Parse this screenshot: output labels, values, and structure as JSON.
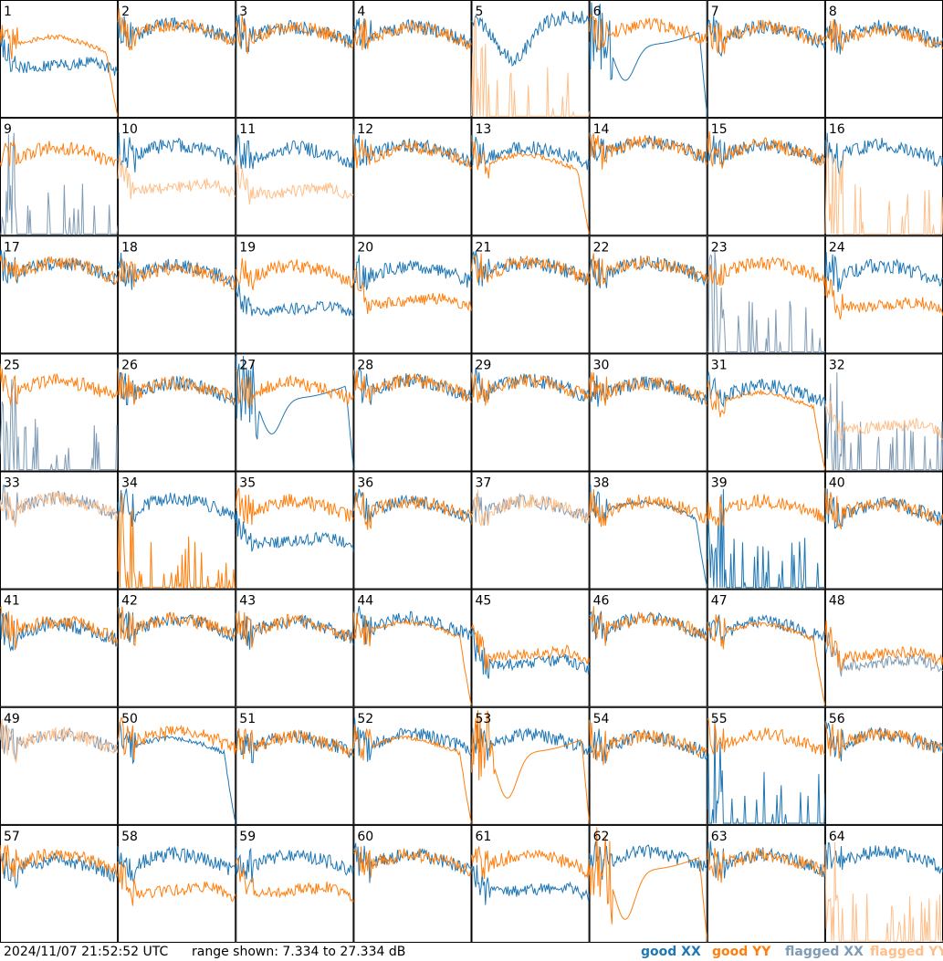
{
  "title": "",
  "footer": {
    "timestamp": "2024/11/07 21:52:52 UTC",
    "range": "range shown: 7.334 to 27.334 dB"
  },
  "colors": {
    "good_xx": "#1f77b4",
    "good_yy": "#ff7f0e",
    "flagged_xx": "#7f9bb5",
    "flagged_yy": "#ffbf8a",
    "grid": "#000000"
  },
  "chart_data": {
    "type": "line",
    "layout": "8x8 small multiples",
    "ylim": [
      7.334,
      27.334
    ],
    "y_unit": "dB",
    "legend": [
      {
        "name": "good XX",
        "color": "#1f77b4"
      },
      {
        "name": "good YY",
        "color": "#ff7f0e"
      },
      {
        "name": "flagged XX",
        "color": "#7f9bb5"
      },
      {
        "name": "flagged YY",
        "color": "#ffbf8a"
      }
    ],
    "legend_position": "bottom-right",
    "panels": [
      {
        "id": "1",
        "xx": {
          "shape": "mid",
          "level": 0.45,
          "flag": false
        },
        "yy": {
          "shape": "dropright",
          "level": 0.55,
          "flag": false
        }
      },
      {
        "id": "2",
        "xx": {
          "shape": "standard",
          "level": 0.25,
          "flag": false
        },
        "yy": {
          "shape": "standard",
          "level": 0.25,
          "flag": false
        }
      },
      {
        "id": "3",
        "xx": {
          "shape": "standard",
          "level": 0.3,
          "flag": false
        },
        "yy": {
          "shape": "standard",
          "level": 0.3,
          "flag": false
        }
      },
      {
        "id": "4",
        "xx": {
          "shape": "standard",
          "level": 0.3,
          "flag": false
        },
        "yy": {
          "shape": "standard",
          "level": 0.3,
          "flag": false
        }
      },
      {
        "id": "5",
        "xx": {
          "shape": "dipwide",
          "level": 0.2,
          "flag": false
        },
        "yy": {
          "shape": "spiky_low",
          "level": 0.0,
          "flag": true
        }
      },
      {
        "id": "6",
        "xx": {
          "shape": "deep",
          "level": 0.55,
          "flag": false
        },
        "yy": {
          "shape": "standard",
          "level": 0.25,
          "flag": false
        }
      },
      {
        "id": "7",
        "xx": {
          "shape": "standard",
          "level": 0.3,
          "flag": false
        },
        "yy": {
          "shape": "standard",
          "level": 0.3,
          "flag": false
        }
      },
      {
        "id": "8",
        "xx": {
          "shape": "standard",
          "level": 0.3,
          "flag": false
        },
        "yy": {
          "shape": "standard",
          "level": 0.35,
          "flag": false
        }
      },
      {
        "id": "9",
        "xx": {
          "shape": "spiky_low",
          "level": 0.0,
          "flag": true
        },
        "yy": {
          "shape": "standard",
          "level": 0.35,
          "flag": false
        }
      },
      {
        "id": "10",
        "xx": {
          "shape": "standard",
          "level": 0.3,
          "flag": false
        },
        "yy": {
          "shape": "mid",
          "level": 0.5,
          "flag": true
        }
      },
      {
        "id": "11",
        "xx": {
          "shape": "standard",
          "level": 0.35,
          "flag": false
        },
        "yy": {
          "shape": "mid",
          "level": 0.55,
          "flag": true
        }
      },
      {
        "id": "12",
        "xx": {
          "shape": "standard",
          "level": 0.3,
          "flag": false
        },
        "yy": {
          "shape": "standard",
          "level": 0.35,
          "flag": false
        }
      },
      {
        "id": "13",
        "xx": {
          "shape": "standard",
          "level": 0.35,
          "flag": false
        },
        "yy": {
          "shape": "dropright",
          "level": 0.55,
          "flag": false
        }
      },
      {
        "id": "14",
        "xx": {
          "shape": "standard",
          "level": 0.25,
          "flag": false
        },
        "yy": {
          "shape": "standard",
          "level": 0.25,
          "flag": false
        }
      },
      {
        "id": "15",
        "xx": {
          "shape": "standard",
          "level": 0.3,
          "flag": false
        },
        "yy": {
          "shape": "standard",
          "level": 0.3,
          "flag": false
        }
      },
      {
        "id": "16",
        "xx": {
          "shape": "standard",
          "level": 0.3,
          "flag": false
        },
        "yy": {
          "shape": "spiky_low",
          "level": 0.0,
          "flag": true
        }
      },
      {
        "id": "17",
        "xx": {
          "shape": "standard",
          "level": 0.3,
          "flag": false
        },
        "yy": {
          "shape": "standard",
          "level": 0.3,
          "flag": false
        }
      },
      {
        "id": "18",
        "xx": {
          "shape": "standard",
          "level": 0.35,
          "flag": false
        },
        "yy": {
          "shape": "standard",
          "level": 0.4,
          "flag": false
        }
      },
      {
        "id": "19",
        "xx": {
          "shape": "mid",
          "level": 0.55,
          "flag": false
        },
        "yy": {
          "shape": "standard",
          "level": 0.35,
          "flag": false
        }
      },
      {
        "id": "20",
        "xx": {
          "shape": "standard",
          "level": 0.35,
          "flag": false
        },
        "yy": {
          "shape": "mid",
          "level": 0.45,
          "flag": false
        }
      },
      {
        "id": "21",
        "xx": {
          "shape": "standard",
          "level": 0.3,
          "flag": false
        },
        "yy": {
          "shape": "standard",
          "level": 0.3,
          "flag": false
        }
      },
      {
        "id": "22",
        "xx": {
          "shape": "standard",
          "level": 0.3,
          "flag": false
        },
        "yy": {
          "shape": "standard",
          "level": 0.3,
          "flag": false
        }
      },
      {
        "id": "23",
        "xx": {
          "shape": "spiky_low",
          "level": 0.0,
          "flag": true
        },
        "yy": {
          "shape": "standard",
          "level": 0.3,
          "flag": false
        }
      },
      {
        "id": "24",
        "xx": {
          "shape": "standard",
          "level": 0.35,
          "flag": false
        },
        "yy": {
          "shape": "mid",
          "level": 0.5,
          "flag": false
        }
      },
      {
        "id": "25",
        "xx": {
          "shape": "spiky_low",
          "level": 0.0,
          "flag": true
        },
        "yy": {
          "shape": "standard",
          "level": 0.3,
          "flag": false
        }
      },
      {
        "id": "26",
        "xx": {
          "shape": "standard",
          "level": 0.35,
          "flag": false
        },
        "yy": {
          "shape": "standard",
          "level": 0.35,
          "flag": false
        }
      },
      {
        "id": "27",
        "xx": {
          "shape": "deep",
          "level": 0.55,
          "flag": false
        },
        "yy": {
          "shape": "standard",
          "level": 0.35,
          "flag": false
        }
      },
      {
        "id": "28",
        "xx": {
          "shape": "standard",
          "level": 0.3,
          "flag": false
        },
        "yy": {
          "shape": "standard",
          "level": 0.3,
          "flag": false
        }
      },
      {
        "id": "29",
        "xx": {
          "shape": "standard",
          "level": 0.3,
          "flag": false
        },
        "yy": {
          "shape": "standard",
          "level": 0.3,
          "flag": false
        }
      },
      {
        "id": "30",
        "xx": {
          "shape": "standard",
          "level": 0.35,
          "flag": false
        },
        "yy": {
          "shape": "standard",
          "level": 0.35,
          "flag": false
        }
      },
      {
        "id": "31",
        "xx": {
          "shape": "standard",
          "level": 0.4,
          "flag": false
        },
        "yy": {
          "shape": "dropright",
          "level": 0.6,
          "flag": false
        }
      },
      {
        "id": "32",
        "xx": {
          "shape": "spiky_low",
          "level": 0.0,
          "flag": true
        },
        "yy": {
          "shape": "mid",
          "level": 0.55,
          "flag": true
        }
      },
      {
        "id": "33",
        "xx": {
          "shape": "standard",
          "level": 0.3,
          "flag": true
        },
        "yy": {
          "shape": "standard",
          "level": 0.3,
          "flag": true
        }
      },
      {
        "id": "34",
        "xx": {
          "shape": "standard",
          "level": 0.3,
          "flag": false
        },
        "yy": {
          "shape": "spiky_low",
          "level": 0.0,
          "flag": false
        }
      },
      {
        "id": "35",
        "xx": {
          "shape": "mid",
          "level": 0.5,
          "flag": false
        },
        "yy": {
          "shape": "standard",
          "level": 0.35,
          "flag": false
        }
      },
      {
        "id": "36",
        "xx": {
          "shape": "standard",
          "level": 0.35,
          "flag": false
        },
        "yy": {
          "shape": "standard",
          "level": 0.35,
          "flag": false
        }
      },
      {
        "id": "37",
        "xx": {
          "shape": "standard",
          "level": 0.35,
          "flag": true
        },
        "yy": {
          "shape": "standard",
          "level": 0.35,
          "flag": true
        }
      },
      {
        "id": "38",
        "xx": {
          "shape": "dropright",
          "level": 0.4,
          "flag": false
        },
        "yy": {
          "shape": "standard",
          "level": 0.35,
          "flag": false
        }
      },
      {
        "id": "39",
        "xx": {
          "shape": "spiky_low",
          "level": 0.0,
          "flag": false
        },
        "yy": {
          "shape": "standard",
          "level": 0.35,
          "flag": false
        }
      },
      {
        "id": "40",
        "xx": {
          "shape": "standard",
          "level": 0.4,
          "flag": false
        },
        "yy": {
          "shape": "standard",
          "level": 0.4,
          "flag": false
        }
      },
      {
        "id": "41",
        "xx": {
          "shape": "standard",
          "level": 0.45,
          "flag": false
        },
        "yy": {
          "shape": "standard",
          "level": 0.4,
          "flag": false
        }
      },
      {
        "id": "42",
        "xx": {
          "shape": "standard",
          "level": 0.35,
          "flag": false
        },
        "yy": {
          "shape": "standard",
          "level": 0.35,
          "flag": false
        }
      },
      {
        "id": "43",
        "xx": {
          "shape": "standard",
          "level": 0.4,
          "flag": false
        },
        "yy": {
          "shape": "standard",
          "level": 0.4,
          "flag": false
        }
      },
      {
        "id": "44",
        "xx": {
          "shape": "standard",
          "level": 0.35,
          "flag": false
        },
        "yy": {
          "shape": "dropright",
          "level": 0.45,
          "flag": false
        }
      },
      {
        "id": "45",
        "xx": {
          "shape": "mid",
          "level": 0.55,
          "flag": false
        },
        "yy": {
          "shape": "mid",
          "level": 0.45,
          "flag": false
        }
      },
      {
        "id": "46",
        "xx": {
          "shape": "standard",
          "level": 0.35,
          "flag": false
        },
        "yy": {
          "shape": "standard",
          "level": 0.35,
          "flag": false
        }
      },
      {
        "id": "47",
        "xx": {
          "shape": "standard",
          "level": 0.4,
          "flag": false
        },
        "yy": {
          "shape": "dropright",
          "level": 0.5,
          "flag": false
        }
      },
      {
        "id": "48",
        "xx": {
          "shape": "mid",
          "level": 0.55,
          "flag": true
        },
        "yy": {
          "shape": "mid",
          "level": 0.45,
          "flag": false
        }
      },
      {
        "id": "49",
        "xx": {
          "shape": "standard",
          "level": 0.3,
          "flag": true
        },
        "yy": {
          "shape": "standard",
          "level": 0.3,
          "flag": true
        }
      },
      {
        "id": "50",
        "xx": {
          "shape": "dropright",
          "level": 0.4,
          "flag": false
        },
        "yy": {
          "shape": "standard",
          "level": 0.25,
          "flag": false
        }
      },
      {
        "id": "51",
        "xx": {
          "shape": "standard",
          "level": 0.35,
          "flag": false
        },
        "yy": {
          "shape": "standard",
          "level": 0.35,
          "flag": false
        }
      },
      {
        "id": "52",
        "xx": {
          "shape": "standard",
          "level": 0.3,
          "flag": false
        },
        "yy": {
          "shape": "dropright",
          "level": 0.4,
          "flag": false
        }
      },
      {
        "id": "53",
        "xx": {
          "shape": "standard",
          "level": 0.3,
          "flag": false
        },
        "yy": {
          "shape": "deep",
          "level": 0.7,
          "flag": false
        }
      },
      {
        "id": "54",
        "xx": {
          "shape": "standard",
          "level": 0.35,
          "flag": false
        },
        "yy": {
          "shape": "standard",
          "level": 0.35,
          "flag": false
        }
      },
      {
        "id": "55",
        "xx": {
          "shape": "spiky_low",
          "level": 0.0,
          "flag": false
        },
        "yy": {
          "shape": "standard",
          "level": 0.3,
          "flag": false
        }
      },
      {
        "id": "56",
        "xx": {
          "shape": "standard",
          "level": 0.3,
          "flag": false
        },
        "yy": {
          "shape": "standard",
          "level": 0.3,
          "flag": false
        }
      },
      {
        "id": "57",
        "xx": {
          "shape": "standard",
          "level": 0.45,
          "flag": false
        },
        "yy": {
          "shape": "standard",
          "level": 0.35,
          "flag": false
        }
      },
      {
        "id": "58",
        "xx": {
          "shape": "standard",
          "level": 0.35,
          "flag": false
        },
        "yy": {
          "shape": "mid",
          "level": 0.45,
          "flag": false
        }
      },
      {
        "id": "59",
        "xx": {
          "shape": "standard",
          "level": 0.35,
          "flag": false
        },
        "yy": {
          "shape": "mid",
          "level": 0.45,
          "flag": false
        }
      },
      {
        "id": "60",
        "xx": {
          "shape": "standard",
          "level": 0.35,
          "flag": false
        },
        "yy": {
          "shape": "standard",
          "level": 0.35,
          "flag": false
        }
      },
      {
        "id": "61",
        "xx": {
          "shape": "mid",
          "level": 0.45,
          "flag": false
        },
        "yy": {
          "shape": "standard",
          "level": 0.35,
          "flag": false
        }
      },
      {
        "id": "62",
        "xx": {
          "shape": "standard",
          "level": 0.3,
          "flag": false
        },
        "yy": {
          "shape": "deep",
          "level": 0.75,
          "flag": false
        }
      },
      {
        "id": "63",
        "xx": {
          "shape": "standard",
          "level": 0.35,
          "flag": false
        },
        "yy": {
          "shape": "standard",
          "level": 0.35,
          "flag": false
        }
      },
      {
        "id": "64",
        "xx": {
          "shape": "standard",
          "level": 0.3,
          "flag": false
        },
        "yy": {
          "shape": "spiky_low",
          "level": 0.0,
          "flag": true
        }
      }
    ]
  }
}
